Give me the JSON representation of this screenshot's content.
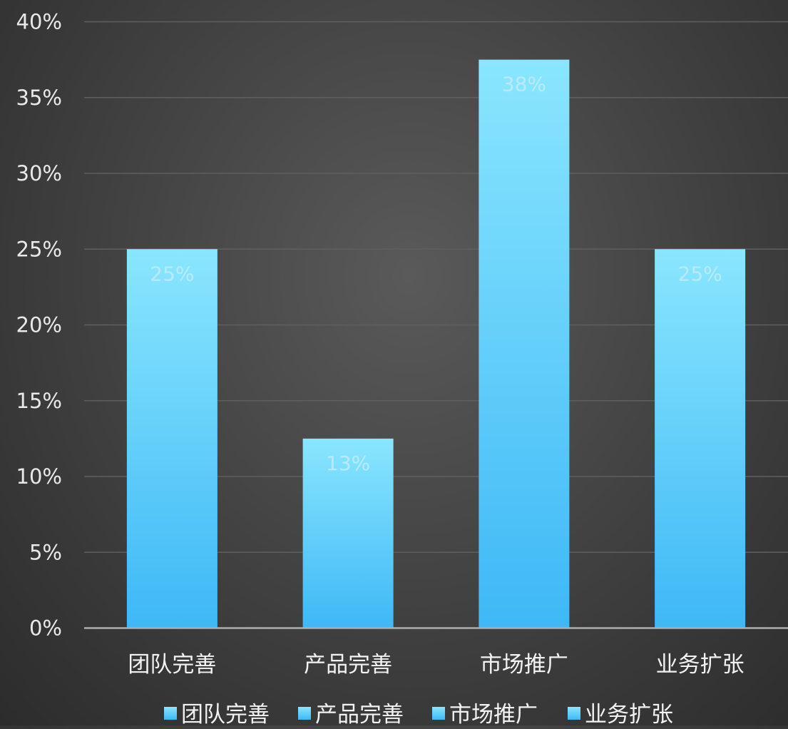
{
  "chart_data": {
    "type": "bar",
    "title": "",
    "xlabel": "",
    "ylabel": "",
    "categories": [
      "团队完善",
      "产品完善",
      "市场推广",
      "业务扩张"
    ],
    "values": [
      25,
      12.5,
      37.5,
      25
    ],
    "data_labels": [
      "25%",
      "13%",
      "38%",
      "25%"
    ],
    "ylim": [
      0,
      40
    ],
    "yticks": [
      "0%",
      "5%",
      "10%",
      "15%",
      "20%",
      "25%",
      "30%",
      "35%",
      "40%"
    ],
    "legend": [
      "团队完善",
      "产品完善",
      "市场推广",
      "业务扩张"
    ],
    "legend_position": "bottom",
    "grid": true,
    "colors": {
      "bar_top": "#8ae6fe",
      "bar_bottom": "#3eb8f6",
      "background": "#474747",
      "gridline": "#5f5f5f",
      "axis": "#aeaeae",
      "text": "#f2f2f2"
    }
  }
}
